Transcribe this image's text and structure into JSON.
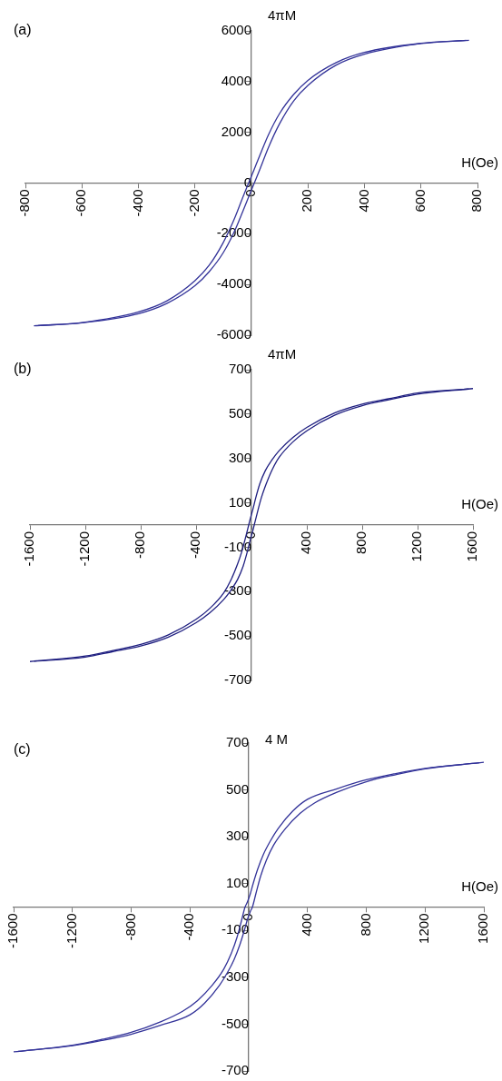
{
  "chart_data": [
    {
      "type": "line",
      "title": "(a)",
      "xlabel": "H(Oe)",
      "ylabel": "4πM",
      "xlim": [
        -800,
        800
      ],
      "ylim": [
        -6000,
        6000
      ],
      "xticks": [
        -800,
        -600,
        -400,
        -200,
        0,
        200,
        400,
        600,
        800
      ],
      "yticks": [
        -6000,
        -4000,
        -2000,
        0,
        2000,
        4000,
        6000
      ],
      "grid": false,
      "marker": "none",
      "line_style": "solid",
      "series": [
        {
          "color": "#333399",
          "x": [
            -755,
            -600,
            -400,
            -300,
            -200,
            -150,
            -100,
            -60,
            -30,
            -10,
            10,
            30,
            60,
            100,
            150,
            200,
            300,
            400,
            600,
            760
          ],
          "values": [
            -5620,
            -5500,
            -5080,
            -4650,
            -3850,
            -3250,
            -2350,
            -1400,
            -550,
            0,
            550,
            1100,
            1900,
            2750,
            3500,
            4050,
            4750,
            5150,
            5510,
            5625
          ]
        },
        {
          "color": "#333399",
          "x": [
            -770,
            -600,
            -400,
            -300,
            -200,
            -150,
            -100,
            -60,
            -30,
            -10,
            10,
            30,
            60,
            100,
            150,
            200,
            300,
            400,
            600,
            770
          ],
          "values": [
            -5630,
            -5510,
            -5150,
            -4750,
            -4050,
            -3500,
            -2750,
            -1900,
            -1100,
            -550,
            0,
            550,
            1400,
            2350,
            3250,
            3850,
            4650,
            5080,
            5500,
            5630
          ]
        }
      ]
    },
    {
      "type": "line",
      "title": "(b)",
      "xlabel": "H(Oe)",
      "ylabel": "4πM",
      "xlim": [
        -1600,
        1600
      ],
      "ylim": [
        -700,
        700
      ],
      "xticks": [
        -1600,
        -1200,
        -800,
        -400,
        0,
        400,
        800,
        1200,
        1600
      ],
      "yticks": [
        -700,
        -500,
        -300,
        -100,
        100,
        300,
        500,
        700
      ],
      "grid": false,
      "marker": "none",
      "line_style": "solid",
      "series": [
        {
          "color": "#1f1f80",
          "x": [
            -1570,
            -1200,
            -1000,
            -800,
            -600,
            -400,
            -300,
            -200,
            -150,
            -100,
            -70,
            -40,
            -20,
            -10,
            10,
            30,
            60,
            100,
            150,
            200,
            300,
            400,
            600,
            800,
            1000,
            1200,
            1570
          ],
          "values": [
            -613,
            -590,
            -565,
            -538,
            -495,
            -425,
            -375,
            -305,
            -250,
            -175,
            -120,
            -50,
            0,
            25,
            70,
            120,
            185,
            245,
            295,
            335,
            395,
            440,
            505,
            545,
            570,
            595,
            613
          ]
        },
        {
          "color": "#1f1f80",
          "x": [
            -1600,
            -1200,
            -1000,
            -800,
            -600,
            -400,
            -300,
            -200,
            -150,
            -100,
            -60,
            -30,
            -10,
            10,
            20,
            40,
            70,
            100,
            150,
            200,
            300,
            400,
            600,
            800,
            1000,
            1200,
            1600
          ],
          "values": [
            -615,
            -595,
            -570,
            -545,
            -505,
            -440,
            -395,
            -335,
            -295,
            -245,
            -185,
            -120,
            -70,
            -25,
            0,
            50,
            120,
            175,
            250,
            305,
            375,
            425,
            495,
            538,
            565,
            590,
            615
          ]
        }
      ]
    },
    {
      "type": "line",
      "title": "(c)",
      "xlabel": "H(Oe)",
      "ylabel": "4 M",
      "xlim": [
        -1600,
        1600
      ],
      "ylim": [
        -700,
        700
      ],
      "xticks": [
        -1600,
        -1200,
        -800,
        -400,
        0,
        400,
        800,
        1200,
        1600
      ],
      "yticks": [
        -700,
        -500,
        -300,
        -100,
        100,
        300,
        500,
        700
      ],
      "grid": false,
      "marker": "none",
      "line_style": "solid",
      "series": [
        {
          "color": "#333399",
          "x": [
            -1570,
            -1200,
            -1000,
            -800,
            -600,
            -450,
            -350,
            -250,
            -170,
            -120,
            -80,
            -50,
            -25,
            -10,
            10,
            30,
            60,
            100,
            150,
            200,
            300,
            400,
            600,
            800,
            1000,
            1200,
            1570
          ],
          "values": [
            -616,
            -590,
            -565,
            -535,
            -490,
            -445,
            -400,
            -335,
            -265,
            -200,
            -130,
            -60,
            0,
            20,
            55,
            100,
            160,
            225,
            285,
            335,
            410,
            460,
            505,
            543,
            570,
            592,
            616
          ]
        },
        {
          "color": "#333399",
          "x": [
            -1600,
            -1200,
            -1000,
            -800,
            -600,
            -400,
            -300,
            -200,
            -150,
            -100,
            -60,
            -30,
            -10,
            10,
            25,
            50,
            80,
            120,
            170,
            250,
            350,
            450,
            600,
            800,
            1000,
            1200,
            1600
          ],
          "values": [
            -618,
            -592,
            -570,
            -543,
            -505,
            -460,
            -410,
            -335,
            -285,
            -225,
            -160,
            -100,
            -55,
            -20,
            0,
            60,
            130,
            200,
            265,
            335,
            400,
            445,
            490,
            535,
            565,
            590,
            618
          ]
        }
      ]
    }
  ]
}
